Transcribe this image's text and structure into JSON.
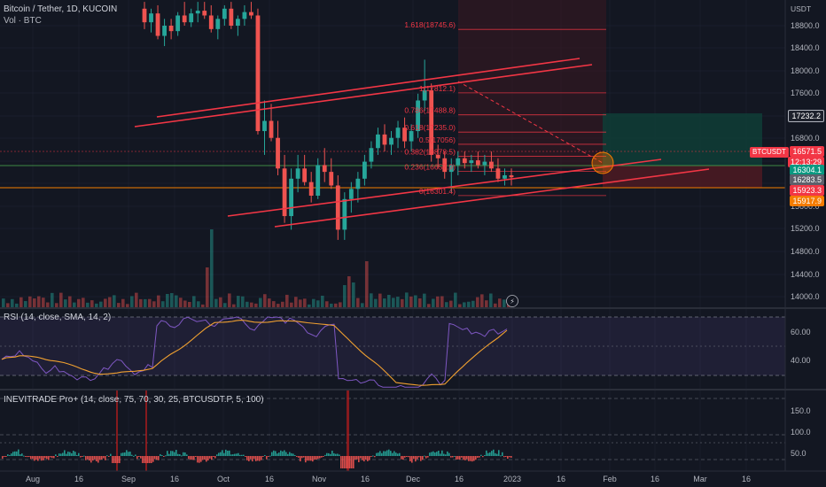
{
  "header": {
    "title": "Bitcoin / Tether, 1D, KUCOIN",
    "volume_label": "Vol · BTC",
    "rsi_label": "RSI (14, close, SMA, 14, 2)",
    "indicator_label": "INEVITRADE Pro+ (14, close, 75, 70, 30, 25, BTCUSDT.P, 5, 100)",
    "currency": "USDT"
  },
  "price_axis": {
    "ticks": [
      "18800.0",
      "18400.0",
      "18000.0",
      "17600.0",
      "17200.0",
      "16800.0",
      "16400.0",
      "16000.0",
      "15600.0",
      "15200.0",
      "14800.0",
      "14400.0",
      "14000.0"
    ],
    "tags": [
      {
        "label": "17232.2",
        "bg": "#1e222d",
        "border": "#b2b5be"
      },
      {
        "label": "16571.5",
        "bg": "#f23645"
      },
      {
        "label": "12:13:29",
        "bg": "#f23645"
      },
      {
        "label": "16304.1",
        "bg": "#089981"
      },
      {
        "label": "16283.5",
        "bg": "#5d606b"
      },
      {
        "label": "15923.3",
        "bg": "#f23645"
      },
      {
        "label": "15917.9",
        "bg": "#f57c00"
      }
    ],
    "symbol_tag": "BTCUSDT"
  },
  "rsi_axis": {
    "ticks": [
      "60.00",
      "40.00"
    ]
  },
  "ind_axis": {
    "ticks": [
      "150.0",
      "100.0",
      "50.0"
    ]
  },
  "time_axis": {
    "ticks": [
      "Aug",
      "16",
      "Sep",
      "16",
      "Oct",
      "16",
      "Nov",
      "16",
      "Dec",
      "16",
      "2023",
      "16",
      "Feb",
      "16",
      "Mar",
      "16"
    ]
  },
  "fib_labels": [
    "1.618(18745.6)",
    "1(17812.1)",
    "0.786(17488.8)",
    "0.618(17235.0)",
    "0.5(17056)",
    "0.382(16878.5)",
    "0.236(16657.9)",
    "0(16301.4)"
  ],
  "colors": {
    "up": "#26a69a",
    "down": "#ef5350",
    "channel": "#f23645",
    "rsi": "#7e57c2",
    "rsi_ma": "#f0a030",
    "background": "#131722"
  },
  "chart_data": {
    "type": "candlestick",
    "title": "Bitcoin / Tether, 1D, KUCOIN",
    "price_range": [
      13800,
      19200
    ],
    "fib_levels": [
      {
        "ratio": "1.618",
        "price": 18745.6
      },
      {
        "ratio": "1",
        "price": 17812.1
      },
      {
        "ratio": "0.786",
        "price": 17488.8
      },
      {
        "ratio": "0.618",
        "price": 17235.0
      },
      {
        "ratio": "0.5",
        "price": 17056
      },
      {
        "ratio": "0.382",
        "price": 16878.5
      },
      {
        "ratio": "0.236",
        "price": 16657.9
      },
      {
        "ratio": "0",
        "price": 16301.4
      }
    ],
    "last_price": 16571.5,
    "countdown": "12:13:29",
    "horizontal_levels": [
      16304.1,
      16283.5,
      15923.3,
      15917.9
    ],
    "target_level": 17232.2,
    "rsi": {
      "ylim": [
        20,
        80
      ],
      "levels": [
        70,
        50,
        30
      ],
      "ticks": [
        60,
        40
      ]
    },
    "indicator": {
      "ticks": [
        150,
        100,
        50
      ]
    },
    "candles": [
      [
        19050,
        19150,
        18750,
        18850
      ],
      [
        18850,
        19050,
        18700,
        18980
      ],
      [
        18980,
        19100,
        18600,
        18650
      ],
      [
        18650,
        18900,
        18500,
        18800
      ],
      [
        18800,
        18900,
        18600,
        18720
      ],
      [
        18720,
        19000,
        18650,
        18950
      ],
      [
        18950,
        19150,
        18800,
        18850
      ],
      [
        18850,
        19050,
        18780,
        18980
      ],
      [
        18980,
        19150,
        18850,
        19020
      ],
      [
        19020,
        19150,
        18900,
        18950
      ],
      [
        18950,
        19100,
        18700,
        18750
      ],
      [
        18750,
        18950,
        18600,
        18900
      ],
      [
        18900,
        19100,
        18800,
        19050
      ],
      [
        19050,
        19150,
        18750,
        18800
      ],
      [
        18800,
        18950,
        18650,
        18900
      ],
      [
        18900,
        19100,
        18800,
        19000
      ],
      [
        19000,
        19150,
        18900,
        18950
      ],
      [
        18950,
        19050,
        17200,
        17250
      ],
      [
        17250,
        17700,
        16900,
        17400
      ],
      [
        17400,
        17650,
        17100,
        17150
      ],
      [
        17150,
        17400,
        16600,
        16700
      ],
      [
        16700,
        16900,
        15900,
        16000
      ],
      [
        16000,
        16700,
        15800,
        16550
      ],
      [
        16550,
        16900,
        16350,
        16700
      ],
      [
        16700,
        16900,
        16450,
        16500
      ],
      [
        16500,
        16650,
        16200,
        16300
      ],
      [
        16300,
        16850,
        16250,
        16750
      ],
      [
        16750,
        17000,
        16500,
        16650
      ],
      [
        16650,
        16850,
        16400,
        16450
      ],
      [
        16450,
        16600,
        15650,
        15800
      ],
      [
        15800,
        16350,
        15650,
        16250
      ],
      [
        16250,
        16500,
        16050,
        16400
      ],
      [
        16400,
        16650,
        16200,
        16550
      ],
      [
        16550,
        16900,
        16450,
        16800
      ],
      [
        16800,
        17100,
        16700,
        17000
      ],
      [
        17000,
        17300,
        16900,
        17200
      ],
      [
        17200,
        17350,
        16950,
        17050
      ],
      [
        17050,
        17250,
        16900,
        17150
      ],
      [
        17150,
        17400,
        17000,
        17300
      ],
      [
        17300,
        17450,
        17000,
        17100
      ],
      [
        17100,
        17350,
        16950,
        17250
      ],
      [
        17250,
        17800,
        17150,
        17700
      ],
      [
        17700,
        18300,
        17550,
        17850
      ],
      [
        17850,
        17950,
        16800,
        16900
      ],
      [
        16900,
        17050,
        16700,
        16850
      ],
      [
        16850,
        16950,
        16550,
        16650
      ],
      [
        16650,
        16850,
        16350,
        16750
      ],
      [
        16750,
        16950,
        16600,
        16850
      ],
      [
        16850,
        16950,
        16700,
        16780
      ],
      [
        16780,
        16900,
        16650,
        16820
      ],
      [
        16820,
        16950,
        16700,
        16750
      ],
      [
        16750,
        16900,
        16600,
        16800
      ],
      [
        16800,
        16950,
        16650,
        16700
      ],
      [
        16700,
        16850,
        16500,
        16550
      ],
      [
        16550,
        16700,
        16450,
        16600
      ],
      [
        16600,
        16700,
        16450,
        16571
      ]
    ]
  }
}
